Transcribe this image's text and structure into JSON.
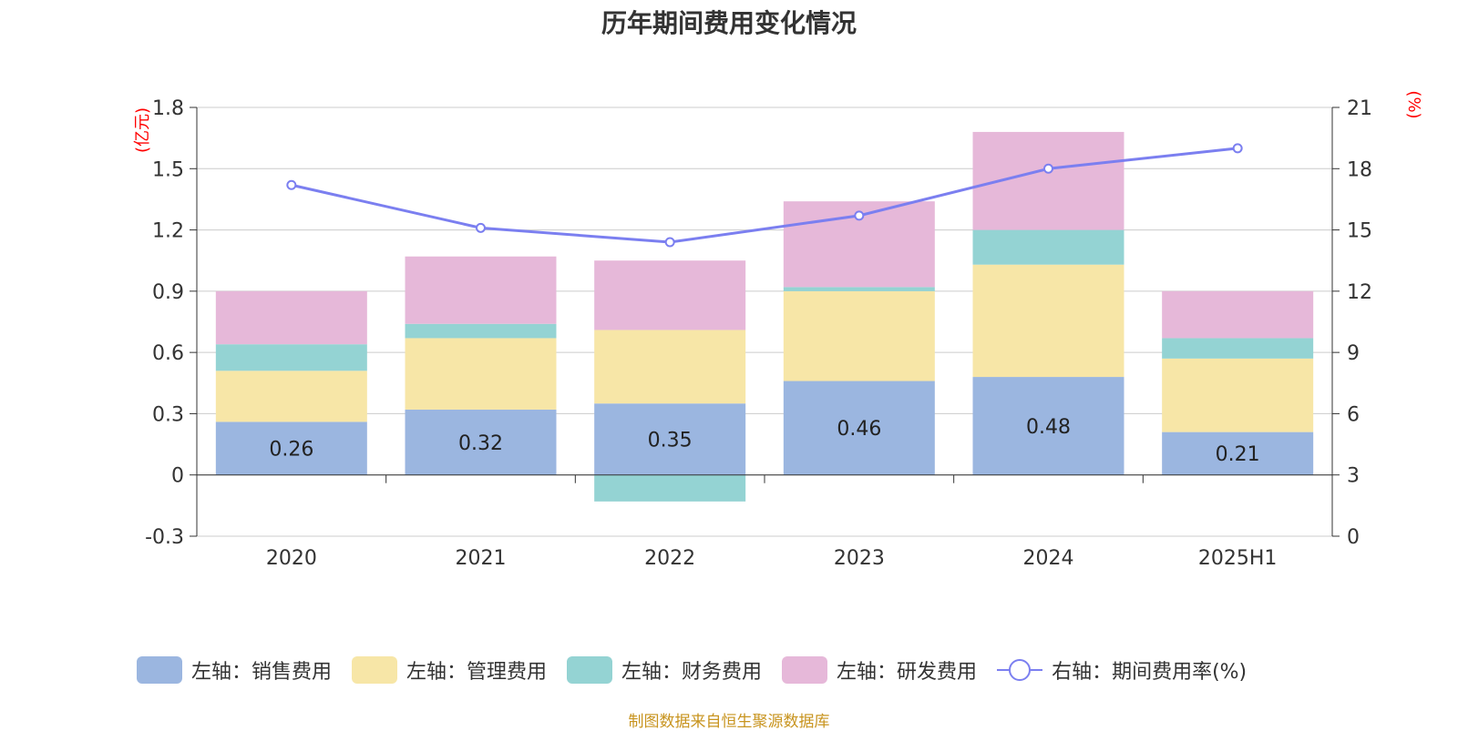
{
  "chart_data": {
    "type": "bar",
    "title": "历年期间费用变化情况",
    "categories": [
      "2020",
      "2021",
      "2022",
      "2023",
      "2024",
      "2025H1"
    ],
    "left_axis": {
      "unit": "(亿元)",
      "ylim": [
        -0.3,
        1.8
      ],
      "ticks": [
        "-0.3",
        "0",
        "0.3",
        "0.6",
        "0.9",
        "1.2",
        "1.5",
        "1.8"
      ]
    },
    "right_axis": {
      "unit": "(%)",
      "ylim": [
        0,
        21
      ],
      "ticks": [
        "0",
        "3",
        "6",
        "9",
        "12",
        "15",
        "18",
        "21"
      ]
    },
    "series": [
      {
        "name": "左轴：销售费用",
        "axis": "left",
        "stack": true,
        "color": "#9bb6e0",
        "values": [
          0.26,
          0.32,
          0.35,
          0.46,
          0.48,
          0.21
        ],
        "labels": [
          "0.26",
          "0.32",
          "0.35",
          "0.46",
          "0.48",
          "0.21"
        ]
      },
      {
        "name": "左轴：管理费用",
        "axis": "left",
        "stack": true,
        "color": "#f7e6a7",
        "values": [
          0.25,
          0.35,
          0.36,
          0.44,
          0.55,
          0.36
        ]
      },
      {
        "name": "左轴：财务费用",
        "axis": "left",
        "stack": true,
        "color": "#94d3d3",
        "values": [
          0.13,
          0.07,
          -0.13,
          0.02,
          0.17,
          0.1
        ]
      },
      {
        "name": "左轴：研发费用",
        "axis": "left",
        "stack": true,
        "color": "#e6b8d9",
        "values": [
          0.26,
          0.33,
          0.34,
          0.42,
          0.48,
          0.23
        ]
      },
      {
        "name": "右轴：期间费用率(%)",
        "axis": "right",
        "type": "line",
        "color": "#7b7ff0",
        "values": [
          17.2,
          15.1,
          14.4,
          15.7,
          18.0,
          19.0
        ]
      }
    ],
    "grid": true,
    "legend_position": "bottom"
  },
  "footer": "制图数据来自恒生聚源数据库"
}
